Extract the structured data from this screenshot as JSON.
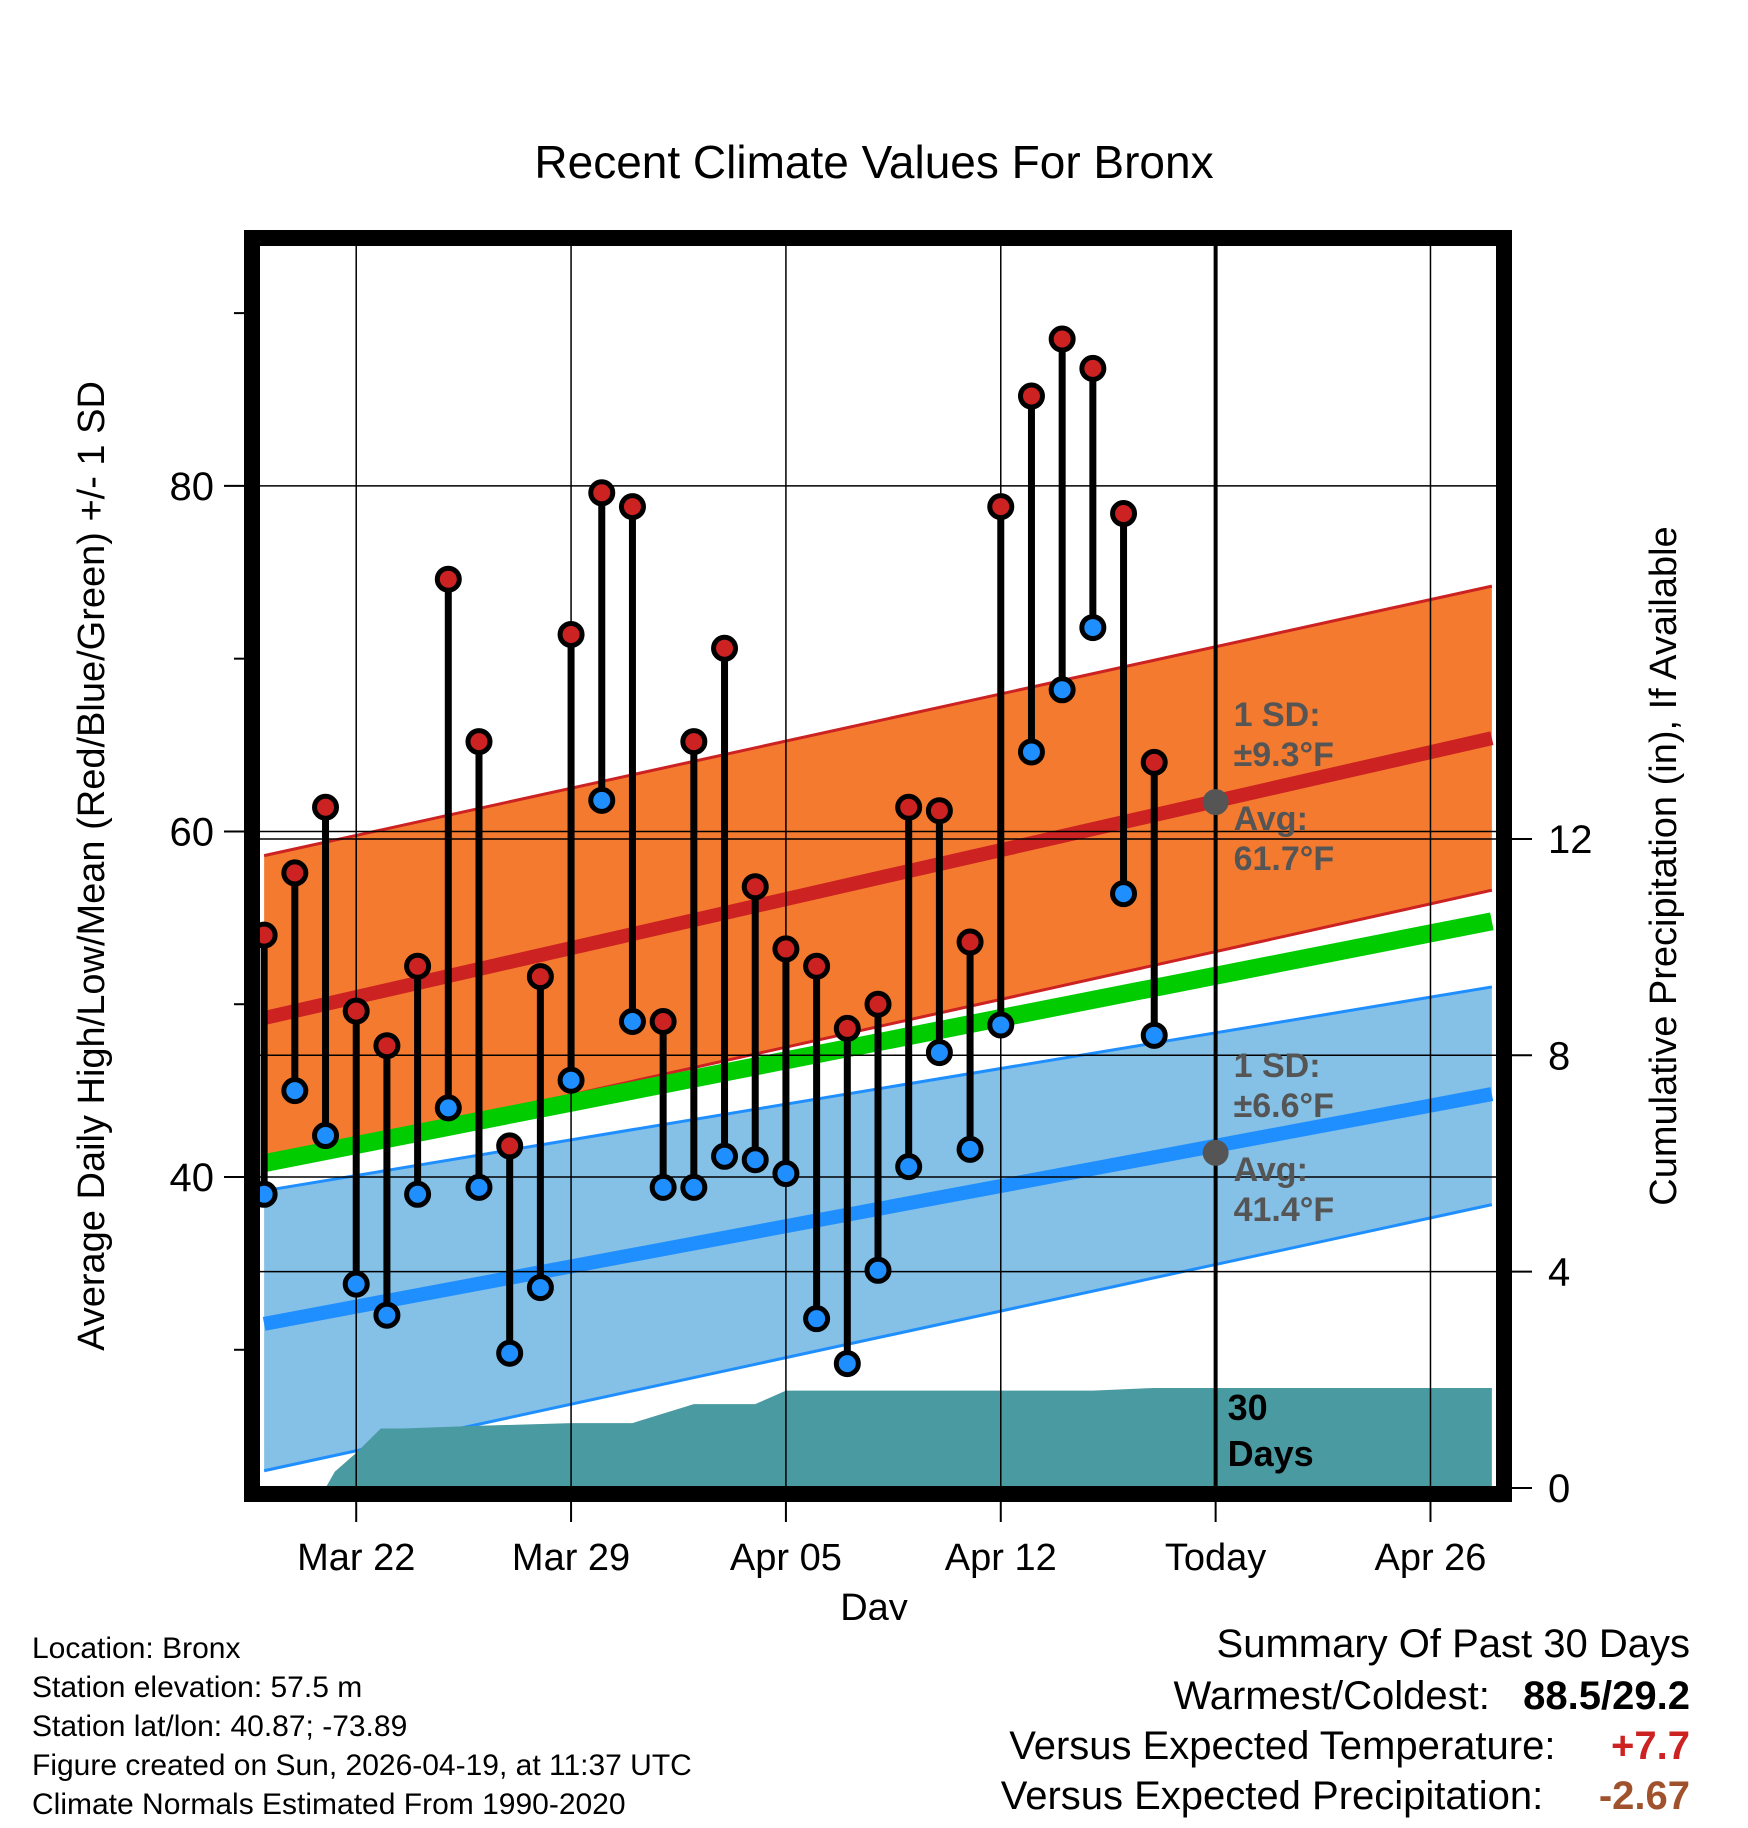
{
  "chart_data": {
    "type": "line",
    "title": "Recent Climate Values For Bronx",
    "xlabel": "Day",
    "ylabel_left": "Average Daily High/Low/Mean (Red/Blue/Green) +/- 1 SD",
    "ylabel_right": "Cumulative Precipitation (in), If Available",
    "x_tick_labels": [
      "Mar 22",
      "Mar 29",
      "Apr 05",
      "Apr 12",
      "Today",
      "Apr 26"
    ],
    "x_tick_days": [
      2,
      9,
      16,
      23,
      30,
      37
    ],
    "xlim": [
      -1.2,
      39.2
    ],
    "ylim_left": [
      22,
      94
    ],
    "left_major_ticks": [
      40,
      60,
      80
    ],
    "left_minor_ticks": [
      30,
      50,
      70,
      90
    ],
    "ylim_right": [
      0,
      23
    ],
    "right_ticks": [
      0,
      4,
      8,
      12
    ],
    "today_day": 30,
    "days": [
      -1,
      0,
      1,
      2,
      3,
      4,
      5,
      6,
      7,
      8,
      9,
      10,
      11,
      12,
      13,
      14,
      15,
      16,
      17,
      18,
      19,
      20,
      21,
      22,
      23,
      24,
      25,
      26,
      27,
      28,
      29
    ],
    "highs": [
      54.0,
      57.6,
      61.4,
      49.6,
      47.6,
      52.2,
      74.6,
      65.2,
      41.8,
      51.6,
      71.4,
      79.6,
      78.8,
      49.0,
      65.2,
      70.6,
      56.8,
      53.2,
      52.2,
      48.6,
      50.0,
      61.4,
      61.2,
      53.6,
      78.8,
      85.2,
      88.5,
      86.8,
      78.4,
      64.0,
      null
    ],
    "lows": [
      39.0,
      45.0,
      42.4,
      33.8,
      32.0,
      39.0,
      44.0,
      39.4,
      29.8,
      33.6,
      45.6,
      61.8,
      49.0,
      39.4,
      39.4,
      41.2,
      41.0,
      40.2,
      31.8,
      29.2,
      34.6,
      40.6,
      47.2,
      41.6,
      48.8,
      64.6,
      68.2,
      71.8,
      56.4,
      48.2,
      null
    ],
    "normal_high": {
      "days": [
        -1,
        39
      ],
      "mean": [
        49.2,
        65.4
      ],
      "upper": [
        58.6,
        74.2
      ],
      "lower": [
        40.8,
        56.6
      ]
    },
    "normal_low": {
      "days": [
        -1,
        39
      ],
      "mean": [
        31.5,
        44.8
      ],
      "upper": [
        39.2,
        51.0
      ],
      "lower": [
        23.0,
        38.4
      ]
    },
    "normal_mean": {
      "days": [
        -1,
        39
      ],
      "values": [
        40.8,
        54.8
      ]
    },
    "precip_cumulative": {
      "days": [
        -1,
        0,
        1,
        1.3,
        2.0,
        2.8,
        3.5,
        6,
        9,
        11,
        13,
        15,
        16,
        18,
        26,
        28,
        39
      ],
      "values": [
        0,
        0,
        0,
        0.3,
        0.65,
        1.1,
        1.1,
        1.15,
        1.2,
        1.2,
        1.55,
        1.55,
        1.8,
        1.8,
        1.8,
        1.85,
        1.85
      ]
    },
    "annotations": {
      "high_sd_label": "1 SD:",
      "high_sd_value": "±9.3°F",
      "high_avg_label": "Avg:",
      "high_avg_value": "61.7°F",
      "high_avg_point": 61.7,
      "low_sd_label": "1 SD:",
      "low_sd_value": "±6.6°F",
      "low_avg_label": "Avg:",
      "low_avg_value": "41.4°F",
      "low_avg_point": 41.4,
      "window_line1": "30",
      "window_line2": "Days"
    },
    "colors": {
      "high_band": "#f47a2f",
      "high_line": "#cc2222",
      "low_band": "#85c0e6",
      "low_line": "#1f8fff",
      "mean_line": "#00cc00",
      "precip": "#4a9aa2",
      "high_dot": "#cc2222",
      "low_dot": "#1f8fff",
      "annotation": "#555555",
      "today_dot": "#555555"
    }
  },
  "info": {
    "location": "Location: Bronx",
    "elevation": "Station elevation: 57.5 m",
    "latlon": "Station lat/lon: 40.87; -73.89",
    "created": "Figure created on Sun, 2026-04-19, at 11:37 UTC",
    "normals": "Climate Normals Estimated From 1990-2020"
  },
  "summary": {
    "heading": "Summary Of Past 30 Days",
    "warmest_label": "Warmest/Coldest:",
    "warmest_value": "88.5/29.2",
    "temp_label": "Versus Expected Temperature:",
    "temp_value": "+7.7",
    "temp_color": "#cc2222",
    "precip_label": "Versus Expected Precipitation:",
    "precip_value": "-2.67",
    "precip_color": "#a0522d"
  }
}
